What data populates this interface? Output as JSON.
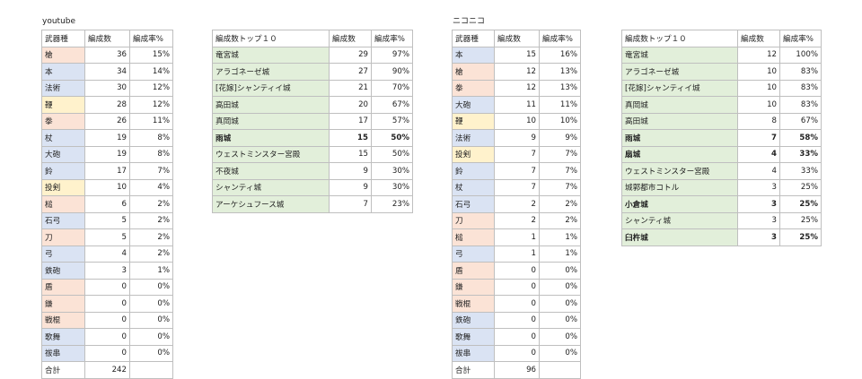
{
  "youtube": {
    "caption": "youtube",
    "weapon_table": {
      "headers": [
        "武器種",
        "編成数",
        "編成率%"
      ],
      "rows": [
        {
          "name": "槍",
          "count": "36",
          "rate": "15%",
          "color": "red"
        },
        {
          "name": "本",
          "count": "34",
          "rate": "14%",
          "color": "blue"
        },
        {
          "name": "法術",
          "count": "30",
          "rate": "12%",
          "color": "blue"
        },
        {
          "name": "鞭",
          "count": "28",
          "rate": "12%",
          "color": "yellow"
        },
        {
          "name": "拳",
          "count": "26",
          "rate": "11%",
          "color": "red"
        },
        {
          "name": "杖",
          "count": "19",
          "rate": "8%",
          "color": "blue"
        },
        {
          "name": "大砲",
          "count": "19",
          "rate": "8%",
          "color": "blue"
        },
        {
          "name": "鈴",
          "count": "17",
          "rate": "7%",
          "color": "blue"
        },
        {
          "name": "投剣",
          "count": "10",
          "rate": "4%",
          "color": "yellow"
        },
        {
          "name": "槌",
          "count": "6",
          "rate": "2%",
          "color": "red"
        },
        {
          "name": "石弓",
          "count": "5",
          "rate": "2%",
          "color": "blue"
        },
        {
          "name": "刀",
          "count": "5",
          "rate": "2%",
          "color": "red"
        },
        {
          "name": "弓",
          "count": "4",
          "rate": "2%",
          "color": "blue"
        },
        {
          "name": "鉄砲",
          "count": "3",
          "rate": "1%",
          "color": "blue"
        },
        {
          "name": "盾",
          "count": "0",
          "rate": "0%",
          "color": "red"
        },
        {
          "name": "鎌",
          "count": "0",
          "rate": "0%",
          "color": "red"
        },
        {
          "name": "戦棍",
          "count": "0",
          "rate": "0%",
          "color": "red"
        },
        {
          "name": "歌舞",
          "count": "0",
          "rate": "0%",
          "color": "blue"
        },
        {
          "name": "祓串",
          "count": "0",
          "rate": "0%",
          "color": "blue"
        }
      ],
      "total": {
        "label": "合計",
        "count": "242",
        "rate": ""
      }
    },
    "top_table": {
      "headers": [
        "編成数トップ１０",
        "編成数",
        "編成率%"
      ],
      "rows": [
        {
          "name": "竜宮城",
          "count": "29",
          "rate": "97%",
          "bold": false
        },
        {
          "name": "アラゴネーゼ城",
          "count": "27",
          "rate": "90%",
          "bold": false
        },
        {
          "name": "[花嫁]シャンティイ城",
          "count": "21",
          "rate": "70%",
          "bold": false
        },
        {
          "name": "高田城",
          "count": "20",
          "rate": "67%",
          "bold": false
        },
        {
          "name": "真岡城",
          "count": "17",
          "rate": "57%",
          "bold": false
        },
        {
          "name": "雨城",
          "count": "15",
          "rate": "50%",
          "bold": true
        },
        {
          "name": "ウェストミンスター宮殿",
          "count": "15",
          "rate": "50%",
          "bold": false
        },
        {
          "name": "不夜城",
          "count": "9",
          "rate": "30%",
          "bold": false
        },
        {
          "name": "シャンティ城",
          "count": "9",
          "rate": "30%",
          "bold": false
        },
        {
          "name": "アーケシュフース城",
          "count": "7",
          "rate": "23%",
          "bold": false
        }
      ]
    }
  },
  "niconico": {
    "caption": "ニコニコ",
    "weapon_table": {
      "headers": [
        "武器種",
        "編成数",
        "編成率%"
      ],
      "rows": [
        {
          "name": "本",
          "count": "15",
          "rate": "16%",
          "color": "blue"
        },
        {
          "name": "槍",
          "count": "12",
          "rate": "13%",
          "color": "red"
        },
        {
          "name": "拳",
          "count": "12",
          "rate": "13%",
          "color": "red"
        },
        {
          "name": "大砲",
          "count": "11",
          "rate": "11%",
          "color": "blue"
        },
        {
          "name": "鞭",
          "count": "10",
          "rate": "10%",
          "color": "yellow"
        },
        {
          "name": "法術",
          "count": "9",
          "rate": "9%",
          "color": "blue"
        },
        {
          "name": "投剣",
          "count": "7",
          "rate": "7%",
          "color": "yellow"
        },
        {
          "name": "鈴",
          "count": "7",
          "rate": "7%",
          "color": "blue"
        },
        {
          "name": "杖",
          "count": "7",
          "rate": "7%",
          "color": "blue"
        },
        {
          "name": "石弓",
          "count": "2",
          "rate": "2%",
          "color": "blue"
        },
        {
          "name": "刀",
          "count": "2",
          "rate": "2%",
          "color": "red"
        },
        {
          "name": "槌",
          "count": "1",
          "rate": "1%",
          "color": "red"
        },
        {
          "name": "弓",
          "count": "1",
          "rate": "1%",
          "color": "blue"
        },
        {
          "name": "盾",
          "count": "0",
          "rate": "0%",
          "color": "red"
        },
        {
          "name": "鎌",
          "count": "0",
          "rate": "0%",
          "color": "red"
        },
        {
          "name": "戦棍",
          "count": "0",
          "rate": "0%",
          "color": "red"
        },
        {
          "name": "鉄砲",
          "count": "0",
          "rate": "0%",
          "color": "blue"
        },
        {
          "name": "歌舞",
          "count": "0",
          "rate": "0%",
          "color": "blue"
        },
        {
          "name": "祓串",
          "count": "0",
          "rate": "0%",
          "color": "blue"
        }
      ],
      "total": {
        "label": "合計",
        "count": "96",
        "rate": ""
      }
    },
    "top_table": {
      "headers": [
        "編成数トップ１０",
        "編成数",
        "編成率%"
      ],
      "rows": [
        {
          "name": "竜宮城",
          "count": "12",
          "rate": "100%",
          "bold": false
        },
        {
          "name": "アラゴネーゼ城",
          "count": "10",
          "rate": "83%",
          "bold": false
        },
        {
          "name": "[花嫁]シャンティイ城",
          "count": "10",
          "rate": "83%",
          "bold": false
        },
        {
          "name": "真岡城",
          "count": "10",
          "rate": "83%",
          "bold": false
        },
        {
          "name": "高田城",
          "count": "8",
          "rate": "67%",
          "bold": false
        },
        {
          "name": "雨城",
          "count": "7",
          "rate": "58%",
          "bold": true
        },
        {
          "name": "扇城",
          "count": "4",
          "rate": "33%",
          "bold": true
        },
        {
          "name": "ウェストミンスター宮殿",
          "count": "4",
          "rate": "33%",
          "bold": false
        },
        {
          "name": "城郭都市コトル",
          "count": "3",
          "rate": "25%",
          "bold": false
        },
        {
          "name": "小倉城",
          "count": "3",
          "rate": "25%",
          "bold": true
        },
        {
          "name": "シャンティ城",
          "count": "3",
          "rate": "25%",
          "bold": false
        },
        {
          "name": "臼杵城",
          "count": "3",
          "rate": "25%",
          "bold": true
        }
      ]
    }
  },
  "colors": {
    "blue": "#dae3f3",
    "red": "#fbe3d6",
    "yellow": "#fff2cc",
    "green": "#e2efda"
  }
}
